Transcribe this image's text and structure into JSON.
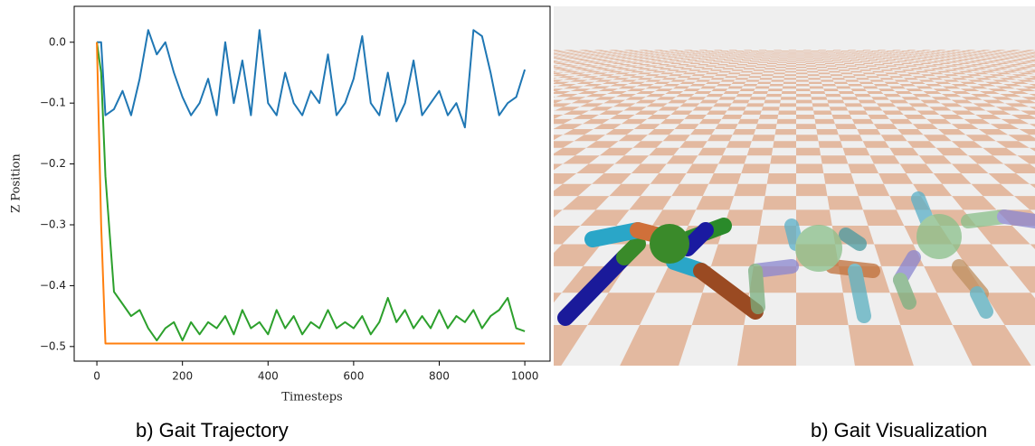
{
  "chart_data": {
    "type": "line",
    "xlabel": "Timesteps",
    "ylabel": "Z Position",
    "x": [
      0,
      10,
      20,
      40,
      60,
      80,
      100,
      120,
      140,
      160,
      180,
      200,
      220,
      240,
      260,
      280,
      300,
      320,
      340,
      360,
      380,
      400,
      420,
      440,
      460,
      480,
      500,
      520,
      540,
      560,
      580,
      600,
      620,
      640,
      660,
      680,
      700,
      720,
      740,
      760,
      780,
      800,
      820,
      840,
      860,
      880,
      900,
      920,
      940,
      960,
      980,
      1000
    ],
    "series": [
      {
        "color": "#1f77b4",
        "values": [
          0,
          0,
          -0.12,
          -0.11,
          -0.08,
          -0.12,
          -0.06,
          0.02,
          -0.02,
          0.0,
          -0.05,
          -0.09,
          -0.12,
          -0.1,
          -0.06,
          -0.12,
          0.0,
          -0.1,
          -0.03,
          -0.12,
          0.02,
          -0.1,
          -0.12,
          -0.05,
          -0.1,
          -0.12,
          -0.08,
          -0.1,
          -0.02,
          -0.12,
          -0.1,
          -0.06,
          0.01,
          -0.1,
          -0.12,
          -0.05,
          -0.13,
          -0.1,
          -0.03,
          -0.12,
          -0.1,
          -0.08,
          -0.12,
          -0.1,
          -0.14,
          0.02,
          0.01,
          -0.05,
          -0.12,
          -0.1,
          -0.09,
          -0.045
        ]
      },
      {
        "color": "#2ca02c",
        "values": [
          0,
          -0.05,
          -0.22,
          -0.41,
          -0.43,
          -0.45,
          -0.44,
          -0.47,
          -0.49,
          -0.47,
          -0.46,
          -0.49,
          -0.46,
          -0.48,
          -0.46,
          -0.47,
          -0.45,
          -0.48,
          -0.44,
          -0.47,
          -0.46,
          -0.48,
          -0.44,
          -0.47,
          -0.45,
          -0.48,
          -0.46,
          -0.47,
          -0.44,
          -0.47,
          -0.46,
          -0.47,
          -0.45,
          -0.48,
          -0.46,
          -0.42,
          -0.46,
          -0.44,
          -0.47,
          -0.45,
          -0.47,
          -0.44,
          -0.47,
          -0.45,
          -0.46,
          -0.44,
          -0.47,
          -0.45,
          -0.44,
          -0.42,
          -0.47,
          -0.475
        ]
      },
      {
        "color": "#ff7f0e",
        "values": [
          0,
          -0.3,
          -0.495,
          -0.495,
          -0.495,
          -0.495,
          -0.495,
          -0.495,
          -0.495,
          -0.495,
          -0.495,
          -0.495,
          -0.495,
          -0.495,
          -0.495,
          -0.495,
          -0.495,
          -0.495,
          -0.495,
          -0.495,
          -0.495,
          -0.495,
          -0.495,
          -0.495,
          -0.495,
          -0.495,
          -0.495,
          -0.495,
          -0.495,
          -0.495,
          -0.495,
          -0.495,
          -0.495,
          -0.495,
          -0.495,
          -0.495,
          -0.495,
          -0.495,
          -0.495,
          -0.495,
          -0.495,
          -0.495,
          -0.495,
          -0.495,
          -0.495,
          -0.495,
          -0.495,
          -0.495,
          -0.495,
          -0.495,
          -0.495,
          -0.495
        ]
      }
    ],
    "xlim": [
      -53,
      1059
    ],
    "ylim": [
      -0.524,
      0.059
    ],
    "xticks": [
      0,
      200,
      400,
      600,
      800,
      1000
    ],
    "yticks": [
      {
        "value": 0,
        "label": "0.0"
      },
      {
        "value": -0.1,
        "label": "−0.1"
      },
      {
        "value": -0.2,
        "label": "−0.2"
      },
      {
        "value": -0.3,
        "label": "−0.3"
      },
      {
        "value": -0.4,
        "label": "−0.4"
      },
      {
        "value": -0.5,
        "label": "−0.5"
      }
    ]
  },
  "captions": [
    "b)   Gait Trajectory",
    "b) Gait Visualization"
  ]
}
